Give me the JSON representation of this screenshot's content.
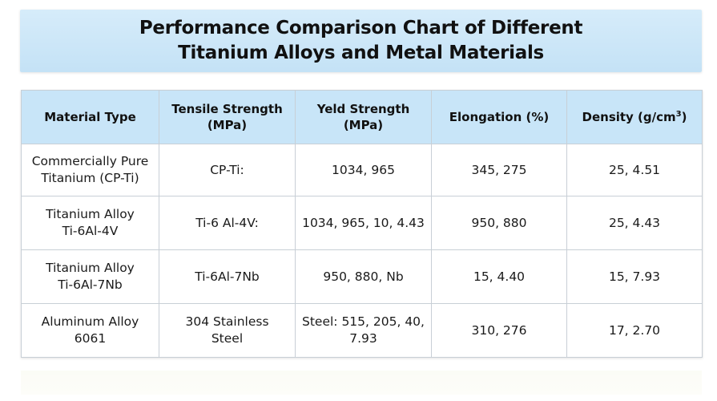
{
  "title": {
    "line1": "Performance Comparison Chart of Different",
    "line2": "Titanium Alloys and Metal Materials"
  },
  "table": {
    "headers": [
      {
        "lines": [
          "Material Type"
        ]
      },
      {
        "lines": [
          "Tensile Strength",
          "(MPa)"
        ]
      },
      {
        "lines": [
          "Yeld Strength",
          "(MPa)"
        ]
      },
      {
        "lines": [
          "Elongation (%)"
        ]
      },
      {
        "main": "Density (g/cm",
        "sup": "3",
        "close": ")"
      }
    ],
    "rows": [
      {
        "material": [
          "Commercially Pure",
          "Titanium (CP-Ti)"
        ],
        "tensile": [
          "CP-Ti:"
        ],
        "yield": [
          "1034, 965"
        ],
        "elongation": [
          "345, 275"
        ],
        "density": [
          "25, 4.51"
        ]
      },
      {
        "material": [
          "Titanium Alloy",
          "Ti-6Al-4V"
        ],
        "tensile": [
          "Ti-6 Al-4V:"
        ],
        "yield": [
          "1034, 965, 10, 4.43"
        ],
        "elongation": [
          "950, 880"
        ],
        "density": [
          "25, 4.43"
        ]
      },
      {
        "material": [
          "Titanium Alloy",
          "Ti-6Al-7Nb"
        ],
        "tensile": [
          "Ti-6Al-7Nb"
        ],
        "yield": [
          "950, 880, Nb"
        ],
        "elongation": [
          "15, 4.40"
        ],
        "density": [
          "15, 7.93"
        ]
      },
      {
        "material": [
          "Aluminum Alloy",
          "6061"
        ],
        "tensile": [
          "304 Stainless",
          "Steel"
        ],
        "yield": [
          "Steel: 515, 205, 40,",
          "7.93"
        ],
        "elongation": [
          "310, 276"
        ],
        "density": [
          "17, 2.70"
        ]
      }
    ]
  },
  "colors": {
    "banner": "#c4e2f6",
    "header_bg": "#c8e5f8",
    "border": "#c8cfd6",
    "text": "#111111"
  }
}
